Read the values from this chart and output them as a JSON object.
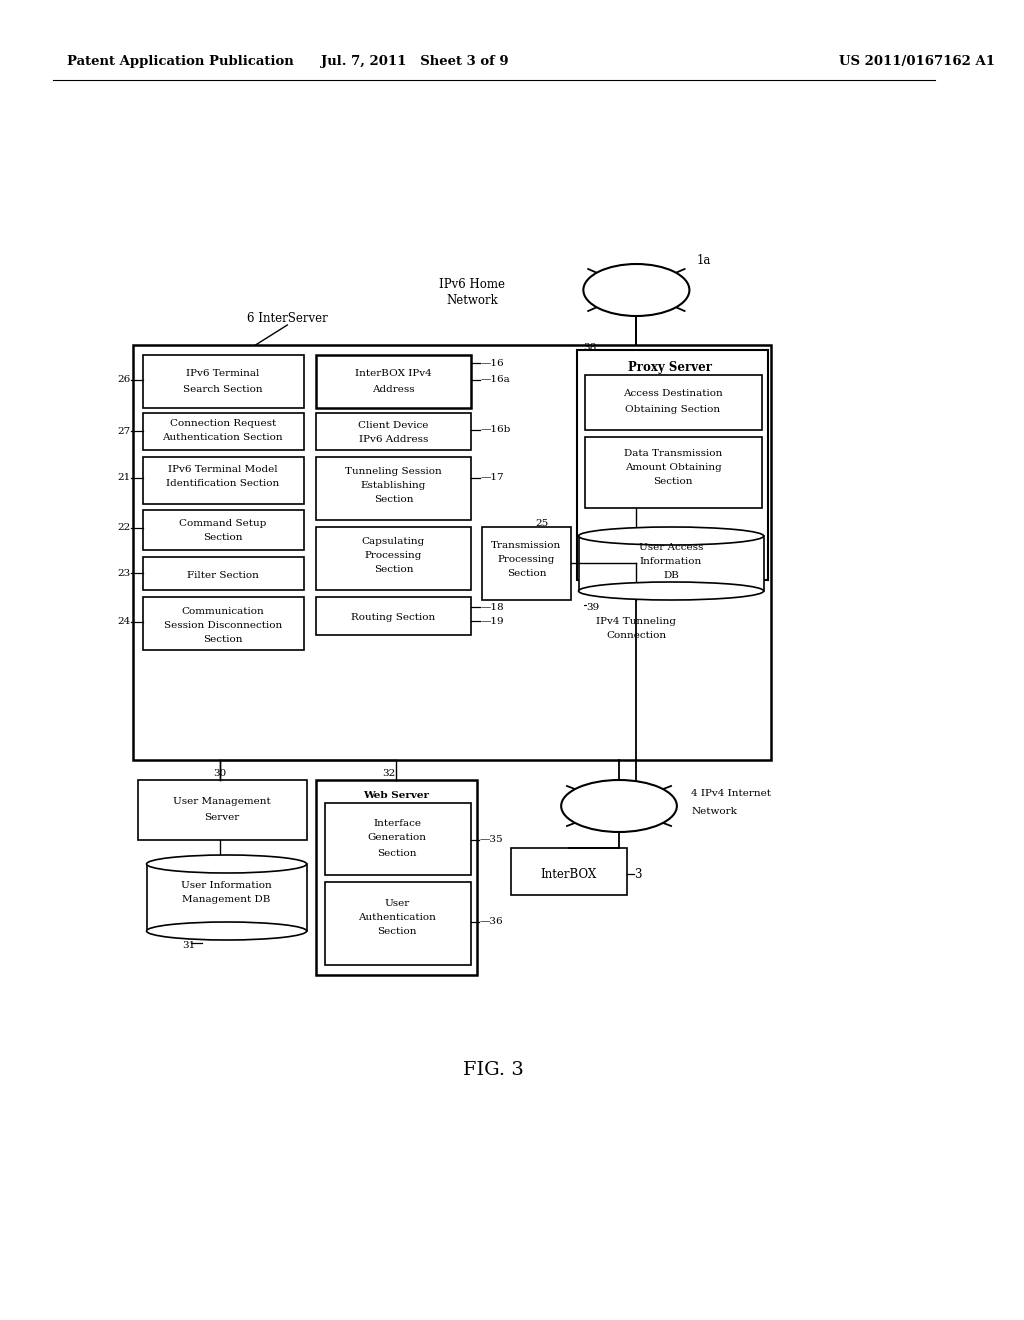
{
  "header_left": "Patent Application Publication",
  "header_mid": "Jul. 7, 2011   Sheet 3 of 9",
  "header_right": "US 2011/0167162 A1",
  "fig_label": "FIG. 3",
  "bg_color": "#ffffff",
  "line_color": "#000000",
  "font_color": "#000000"
}
